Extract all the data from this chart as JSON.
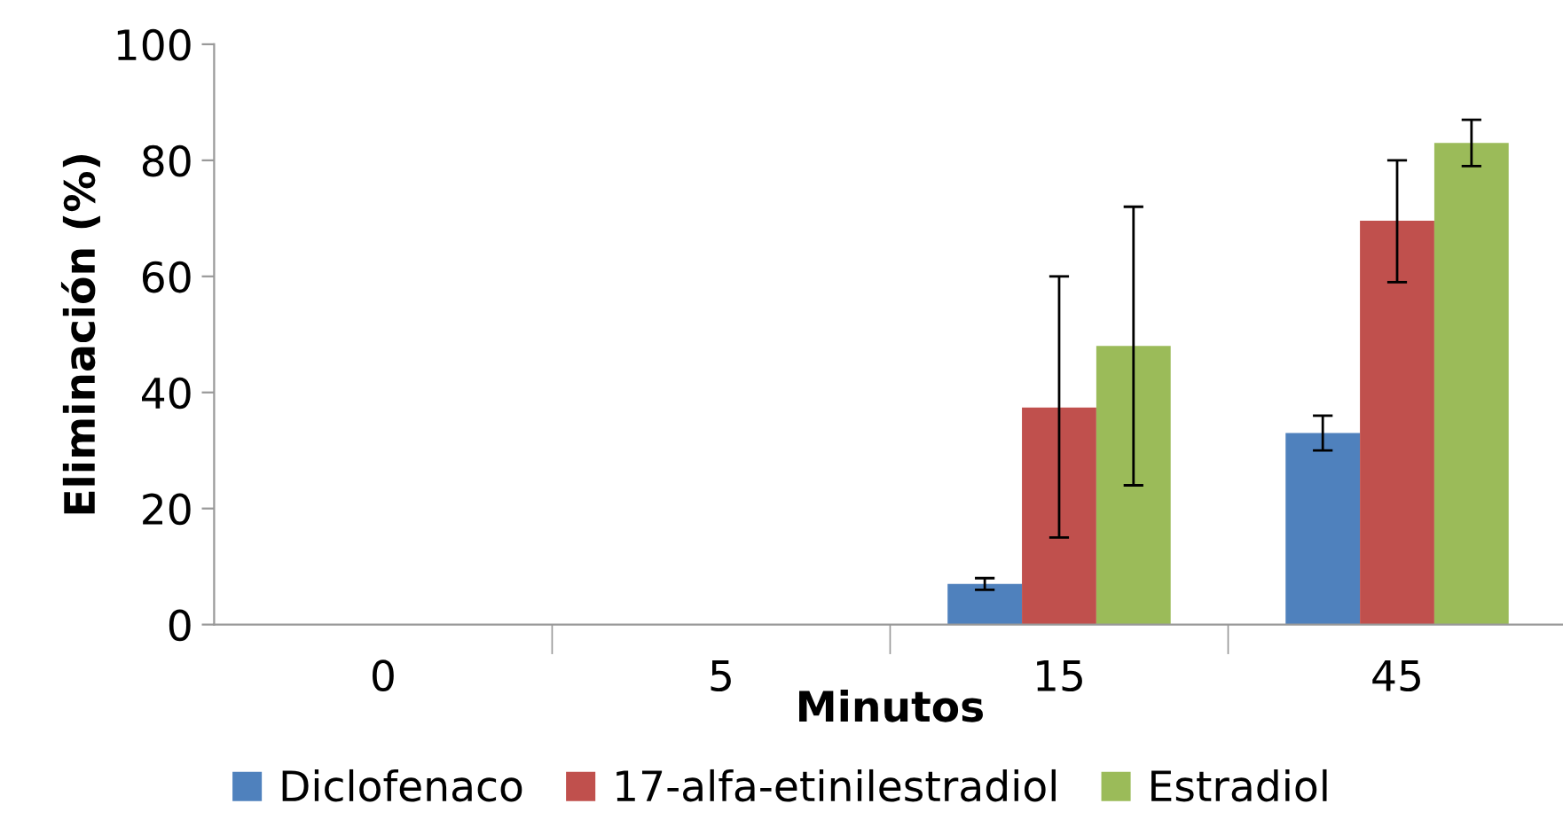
{
  "chart_data": {
    "type": "bar",
    "xlabel": "Minutos",
    "ylabel": "Eliminación (%)",
    "categories": [
      "0",
      "5",
      "15",
      "45"
    ],
    "series": [
      {
        "name": "Diclofenaco",
        "color": "#4f81bd",
        "values": [
          0,
          0,
          7,
          33
        ],
        "errors": [
          null,
          null,
          [
            6,
            8
          ],
          [
            30,
            36
          ]
        ]
      },
      {
        "name": "17-alfa-etinilestradiol",
        "color": "#c0504d",
        "values": [
          0,
          0,
          37.4,
          69.6
        ],
        "errors": [
          null,
          null,
          [
            15,
            60
          ],
          [
            59,
            80
          ]
        ]
      },
      {
        "name": "Estradiol",
        "color": "#9bbb59",
        "values": [
          0,
          0,
          48,
          83
        ],
        "errors": [
          null,
          null,
          [
            24,
            72
          ],
          [
            79,
            87
          ]
        ]
      }
    ],
    "ylim": [
      0,
      100
    ],
    "yticks": [
      0,
      20,
      40,
      60,
      80,
      100
    ],
    "grid": false,
    "legend": "bottom"
  }
}
